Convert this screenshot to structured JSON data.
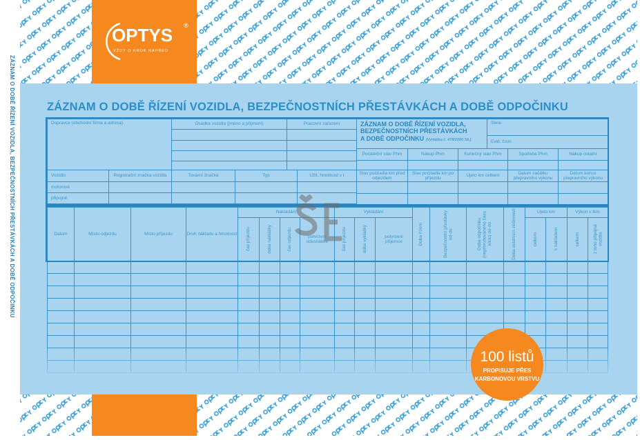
{
  "brand": {
    "name": "OPTYS",
    "registered": "®",
    "tagline": "VŽDY O KROK NAPŘED",
    "pattern_text": "optys",
    "accent": "#f5891f",
    "sheet_color": "#a9d4ef"
  },
  "side_title": "ZÁZNAM O DOBĚ ŘÍZENÍ VOZIDLA, BEZPEČNOSTNÍCH PŘESTÁVKÁCH A DOBĚ ODPOČINKU",
  "title": "ZÁZNAM O DOBĚ ŘÍZENÍ VOZIDLA, BEZPEČNOSTNÍCH PŘESTÁVKÁCH A DOBĚ ODPOČINKU",
  "top": {
    "carrier": "Dopravce (obchodní firma a adresa)",
    "crew": "Osádka vozidla (jméno a příjmení)",
    "position": "Pracovní zařazení",
    "vehicle_cols": [
      "Vozidlo",
      "Registrační značka vozidla",
      "Tovární značka",
      "Typ",
      "Užit. hmotnost v t"
    ],
    "vehicle_rows": [
      "motorové",
      "připojné"
    ],
    "form_title": [
      "ZÁZNAM O DOBĚ ŘÍZENÍ VOZIDLA,",
      "BEZPEČNOSTNÍCH PŘESTÁVKÁCH",
      "A DOBĚ ODPOČINKU"
    ],
    "decree": "(Vyhláška č. 478/2000 Sb.)",
    "series": "Série",
    "record_no": "Evid. číslo",
    "fuel_cols": [
      "Počáteční stav Phm",
      "Nákup Phm",
      "Konečný stav Phm",
      "Spotřeba Phm",
      "Nákup ostatní"
    ],
    "km_cols": [
      "Stav počitadla km před odjezdem",
      "Stav počitadla km po příjezdu",
      "Ujeto km celkem",
      "Datum začátku přepravního výkonu",
      "Datum konce přepravního výkonu"
    ]
  },
  "main": {
    "date": "Datum",
    "departure": "Místo odjezdu",
    "arrival": "Místo příjezdu",
    "cargo": "Druh nákladu a hmotnost",
    "loading": "Nakládání",
    "loading_sub": [
      "čas příjezdu",
      "doba nakládky",
      "čas odjezdu",
      "potvrzení odesílatele"
    ],
    "unloading": "Vykládání",
    "unloading_sub": [
      "čas příjezdu",
      "doba vykládky",
      "potvrzení příjemce"
    ],
    "driving": "Doba řízení",
    "breaks": "Bezpečnostní přestávky od-do",
    "rest": "Doba odpočinku (nepřerušovaného času klidu) od-do",
    "other": "Doba ostatních zěčinností",
    "km": "Ujeto km",
    "km_sub": [
      "celkem",
      "s nákladem"
    ],
    "tkm": "Výkon v tkm",
    "tkm_sub": [
      "celkem",
      "z toho připojná vozidla"
    ]
  },
  "badge": {
    "count": "100 listů",
    "line1": "PROPISUJE PŘES",
    "line2": "KARBONOVOU VRSTVU"
  },
  "watermark": "ŠE"
}
